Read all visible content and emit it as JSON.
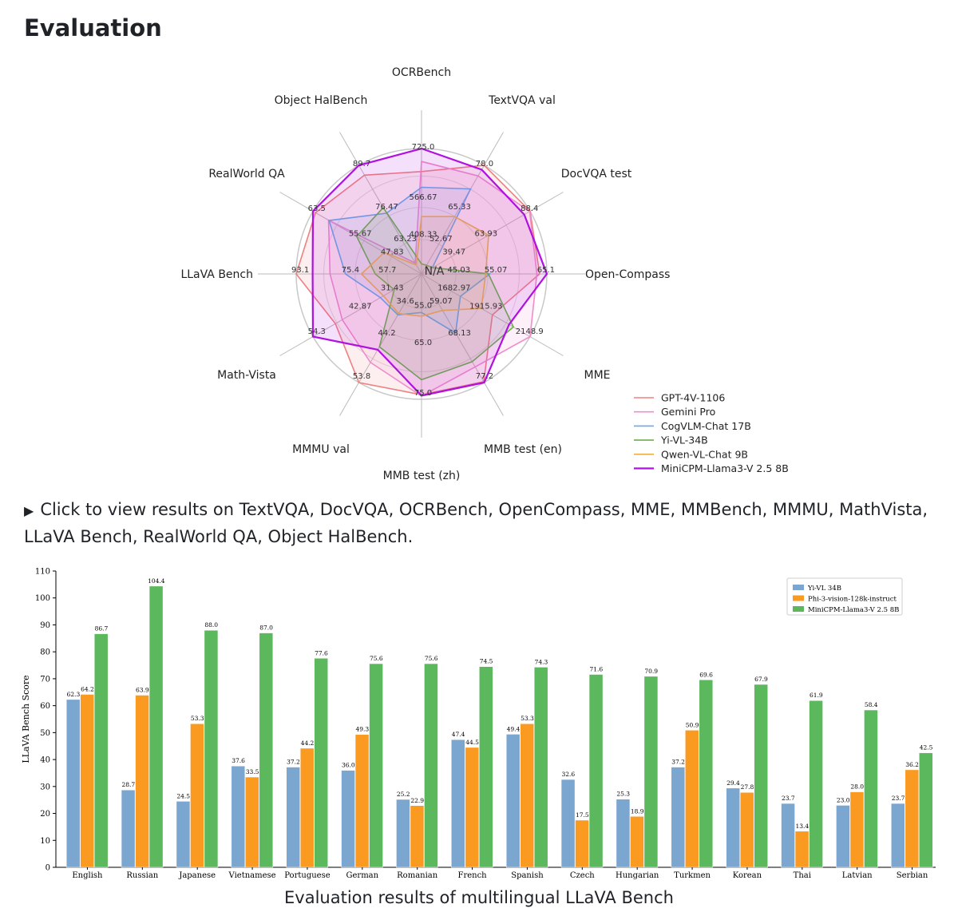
{
  "page": {
    "heading": "Evaluation",
    "details_text": "Click to view results on TextVQA, DocVQA, OCRBench, OpenCompass, MME, MMBench, MMMU, MathVista, LLaVA Bench, RealWorld QA, Object HalBench.",
    "caption": "Evaluation results of multilingual LLaVA Bench"
  },
  "chart_data": [
    {
      "type": "radar",
      "axes": [
        "OCRBench",
        "TextVQA val",
        "DocVQA test",
        "Open-Compass",
        "MME",
        "MMB test (en)",
        "MMB test (zh)",
        "MMMU val",
        "Math-Vista",
        "LLaVA Bench",
        "RealWorld QA",
        "Object HalBench"
      ],
      "center_label": "N/A",
      "ring_labels": [
        [
          "408.33",
          "566.67",
          "725.0"
        ],
        [
          "52.67",
          "65.33",
          "78.0"
        ],
        [
          "39.47",
          "63.93",
          "88.4"
        ],
        [
          "45.03",
          "55.07",
          "65.1"
        ],
        [
          "1682.97",
          "1915.93",
          "2148.9"
        ],
        [
          "59.07",
          "68.13",
          "77.2"
        ],
        [
          "55.0",
          "65.0",
          "75.0"
        ],
        [
          "34.6",
          "44.2",
          "53.8"
        ],
        [
          "31.43",
          "42.87",
          "54.3"
        ],
        [
          "57.7",
          "75.4",
          "93.1"
        ],
        [
          "47.83",
          "55.67",
          "63.5"
        ],
        [
          "63.23",
          "76.47",
          "89.7"
        ]
      ],
      "series": [
        {
          "name": "GPT-4V-1106",
          "color": "#f08080",
          "values": [
            645,
            78,
            88.4,
            63.5,
            1926,
            77,
            74,
            53.8,
            47.8,
            93.1,
            63,
            86.4
          ]
        },
        {
          "name": "Gemini Pro",
          "color": "#f08ccc",
          "values": [
            680,
            74.6,
            88.1,
            62.9,
            2148.9,
            73.6,
            74.3,
            48.9,
            45.8,
            79.9,
            60.4,
            0
          ]
        },
        {
          "name": "CogVLM-Chat 17B",
          "color": "#6aa8e6",
          "values": [
            590,
            70.4,
            0,
            52.5,
            1736.6,
            65.8,
            55.9,
            37.3,
            34.7,
            73.9,
            60.3,
            73.6
          ]
        },
        {
          "name": "Yi-VL-34B",
          "color": "#6ab04c",
          "values": [
            290,
            43.4,
            0,
            52.2,
            2050.2,
            72.4,
            70.7,
            45.1,
            30.7,
            62.3,
            54.8,
            75.5
          ]
        },
        {
          "name": "Qwen-VL-Chat 9B",
          "color": "#e8b04c",
          "values": [
            488,
            61.5,
            62.6,
            51.6,
            1860,
            60.6,
            56.7,
            37,
            33.8,
            67.7,
            49.3,
            56.2
          ]
        },
        {
          "name": "MiniCPM-Llama3-V 2.5 8B",
          "color": "#b010e0",
          "values": [
            725,
            76.6,
            84.8,
            65.1,
            2024.6,
            77.2,
            74.2,
            45.8,
            54.3,
            86.7,
            63.5,
            89.7
          ]
        }
      ]
    },
    {
      "type": "bar",
      "ylabel": "LLaVA Bench Score",
      "ylim": [
        0,
        110
      ],
      "yticks": [
        0,
        10,
        20,
        30,
        40,
        50,
        60,
        70,
        80,
        90,
        100,
        110
      ],
      "categories": [
        "English",
        "Russian",
        "Japanese",
        "Vietnamese",
        "Portuguese",
        "German",
        "Romanian",
        "French",
        "Spanish",
        "Czech",
        "Hungarian",
        "Turkmen",
        "Korean",
        "Thai",
        "Latvian",
        "Serbian"
      ],
      "series": [
        {
          "name": "Yi-VL 34B",
          "color": "#7aa6d0",
          "values": [
            62.3,
            28.7,
            24.5,
            37.6,
            37.2,
            36.0,
            25.2,
            47.4,
            49.4,
            32.6,
            25.3,
            37.2,
            29.4,
            23.7,
            23.0,
            23.7
          ]
        },
        {
          "name": "Phi-3-vision-128k-instruct",
          "color": "#fa9a20",
          "values": [
            64.2,
            63.9,
            53.3,
            33.5,
            44.2,
            49.3,
            22.9,
            44.5,
            53.3,
            17.5,
            18.9,
            50.9,
            27.8,
            13.4,
            28.0,
            36.2
          ]
        },
        {
          "name": "MiniCPM-Llama3-V 2.5 8B",
          "color": "#5cb85c",
          "values": [
            86.7,
            104.4,
            88.0,
            87.0,
            77.6,
            75.6,
            75.6,
            74.5,
            74.3,
            71.6,
            70.9,
            69.6,
            67.9,
            61.9,
            58.4,
            42.5
          ]
        }
      ],
      "value_labels": [
        [
          "62.3",
          "28.7",
          "24.5",
          "37.6",
          "37.2",
          "36.0",
          "25.2",
          "47.4",
          "49.4",
          "32.6",
          "25.3",
          "37.2",
          "29.4",
          "23.7",
          "23.0",
          "23.7"
        ],
        [
          "64.2",
          "63.9",
          "53.3",
          "33.5",
          "44.2",
          "49.3",
          "22.9",
          "44.5",
          "53.3",
          "17.5",
          "18.9",
          "50.9",
          "27.8",
          "13.4",
          "28.0",
          "36.2"
        ],
        [
          "86.7",
          "104.4",
          "88.0",
          "87.0",
          "77.6",
          "75.6",
          "75.6",
          "74.5",
          "74.3",
          "71.6",
          "70.9",
          "69.6",
          "67.9",
          "61.9",
          "58.4",
          "42.5"
        ]
      ]
    }
  ]
}
